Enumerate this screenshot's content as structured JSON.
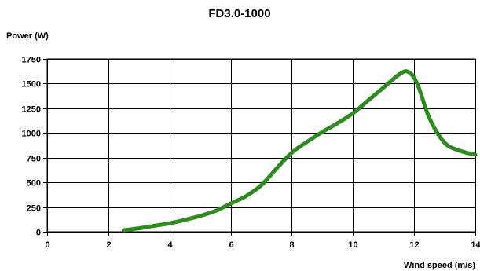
{
  "chart_data": {
    "type": "line",
    "title": "FD3.0-1000",
    "xlabel": "Wind speed (m/s)",
    "ylabel": "Power (W)",
    "xlim": [
      0,
      14
    ],
    "ylim": [
      0,
      1750
    ],
    "xticks": [
      0,
      2,
      4,
      6,
      8,
      10,
      12,
      14
    ],
    "yticks": [
      0,
      250,
      500,
      750,
      1000,
      1250,
      1500,
      1750
    ],
    "grid": true,
    "series_color": "#2e8b1f",
    "series": [
      {
        "x": [
          2.5,
          3,
          3.5,
          4,
          4.5,
          5,
          5.5,
          6,
          6.5,
          7,
          7.5,
          8,
          8.5,
          9,
          9.5,
          10,
          10.5,
          11,
          11.5,
          11.8,
          12.1,
          12.5,
          13,
          13.5,
          14
        ],
        "y": [
          15,
          35,
          60,
          85,
          120,
          160,
          210,
          285,
          360,
          470,
          640,
          800,
          910,
          1010,
          1100,
          1200,
          1330,
          1460,
          1590,
          1620,
          1500,
          1150,
          900,
          820,
          780
        ]
      }
    ]
  }
}
